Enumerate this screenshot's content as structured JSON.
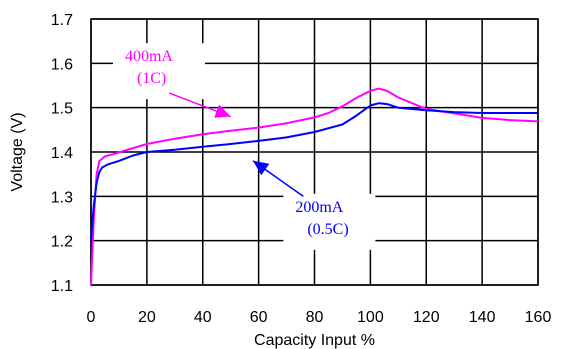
{
  "chart_data": {
    "type": "line",
    "title": "",
    "xlabel": "Capacity Input %",
    "ylabel": "Voltage (V)",
    "xlim": [
      0,
      160
    ],
    "ylim": [
      1.1,
      1.7
    ],
    "x_ticks": [
      0,
      20,
      40,
      60,
      80,
      100,
      120,
      140,
      160
    ],
    "y_ticks": [
      1.1,
      1.2,
      1.3,
      1.4,
      1.5,
      1.6,
      1.7
    ],
    "x_tick_labels": [
      "0",
      "20",
      "40",
      "60",
      "80",
      "100",
      "120",
      "140",
      "160"
    ],
    "y_tick_labels": [
      "1.1",
      "1.2",
      "1.3",
      "1.4",
      "1.5",
      "1.6",
      "1.7"
    ],
    "grid": true,
    "series": [
      {
        "name": "400mA (1C)",
        "color": "#ff00ff",
        "x": [
          0,
          1,
          2,
          3,
          5,
          8,
          12,
          20,
          30,
          40,
          50,
          60,
          70,
          80,
          85,
          90,
          95,
          100,
          103,
          106,
          110,
          120,
          130,
          140,
          150,
          160
        ],
        "y": [
          1.1,
          1.25,
          1.35,
          1.38,
          1.39,
          1.395,
          1.403,
          1.418,
          1.43,
          1.44,
          1.448,
          1.455,
          1.465,
          1.478,
          1.488,
          1.503,
          1.522,
          1.538,
          1.543,
          1.538,
          1.523,
          1.497,
          1.487,
          1.477,
          1.472,
          1.469
        ]
      },
      {
        "name": "200mA (0.5C)",
        "color": "#0000ff",
        "x": [
          0,
          1,
          2,
          3,
          4,
          6,
          10,
          15,
          20,
          30,
          40,
          50,
          60,
          70,
          80,
          90,
          95,
          100,
          103,
          106,
          110,
          120,
          130,
          140,
          150,
          160
        ],
        "y": [
          1.2,
          1.28,
          1.33,
          1.355,
          1.365,
          1.372,
          1.38,
          1.392,
          1.4,
          1.405,
          1.412,
          1.418,
          1.425,
          1.433,
          1.445,
          1.462,
          1.482,
          1.505,
          1.51,
          1.508,
          1.5,
          1.494,
          1.49,
          1.488,
          1.488,
          1.488
        ]
      }
    ],
    "annotations": [
      {
        "id": "400",
        "lines": [
          "400mA",
          "(1C)"
        ],
        "color": "#ff00ff",
        "text_x": 10,
        "text_y": 1.605,
        "arrow_from": [
          28,
          1.533
        ],
        "arrow_to": [
          50,
          1.48
        ]
      },
      {
        "id": "200",
        "lines": [
          "200mA",
          "(0.5C)"
        ],
        "color": "#0000ff",
        "text_x": 71,
        "text_y": 1.265,
        "arrow_from": [
          76,
          1.3
        ],
        "arrow_to": [
          58,
          1.38
        ]
      }
    ]
  }
}
